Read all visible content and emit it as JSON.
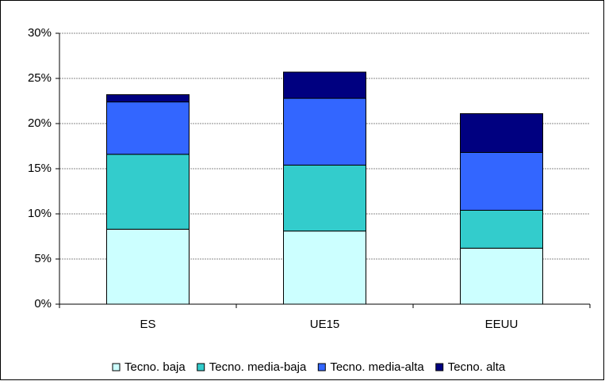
{
  "chart_data": {
    "type": "stacked-bar",
    "categories": [
      "ES",
      "UE15",
      "EEUU"
    ],
    "series": [
      {
        "name": "Tecno. baja",
        "color": "#ccffff",
        "values": [
          8.3,
          8.1,
          6.2
        ]
      },
      {
        "name": "Tecno. media-baja",
        "color": "#33cccc",
        "values": [
          8.3,
          7.3,
          4.2
        ]
      },
      {
        "name": "Tecno. media-alta",
        "color": "#3366ff",
        "values": [
          5.8,
          7.4,
          6.4
        ]
      },
      {
        "name": "Tecno. alta",
        "color": "#000080",
        "values": [
          0.8,
          2.9,
          4.3
        ]
      }
    ],
    "ylim": [
      0,
      30
    ],
    "yticks": [
      {
        "value": 0,
        "label": "0%"
      },
      {
        "value": 5,
        "label": "5%"
      },
      {
        "value": 10,
        "label": "10%"
      },
      {
        "value": 15,
        "label": "15%"
      },
      {
        "value": 20,
        "label": "20%"
      },
      {
        "value": 25,
        "label": "25%"
      },
      {
        "value": 30,
        "label": "30%"
      }
    ],
    "grid": true,
    "legend": "bottom"
  }
}
